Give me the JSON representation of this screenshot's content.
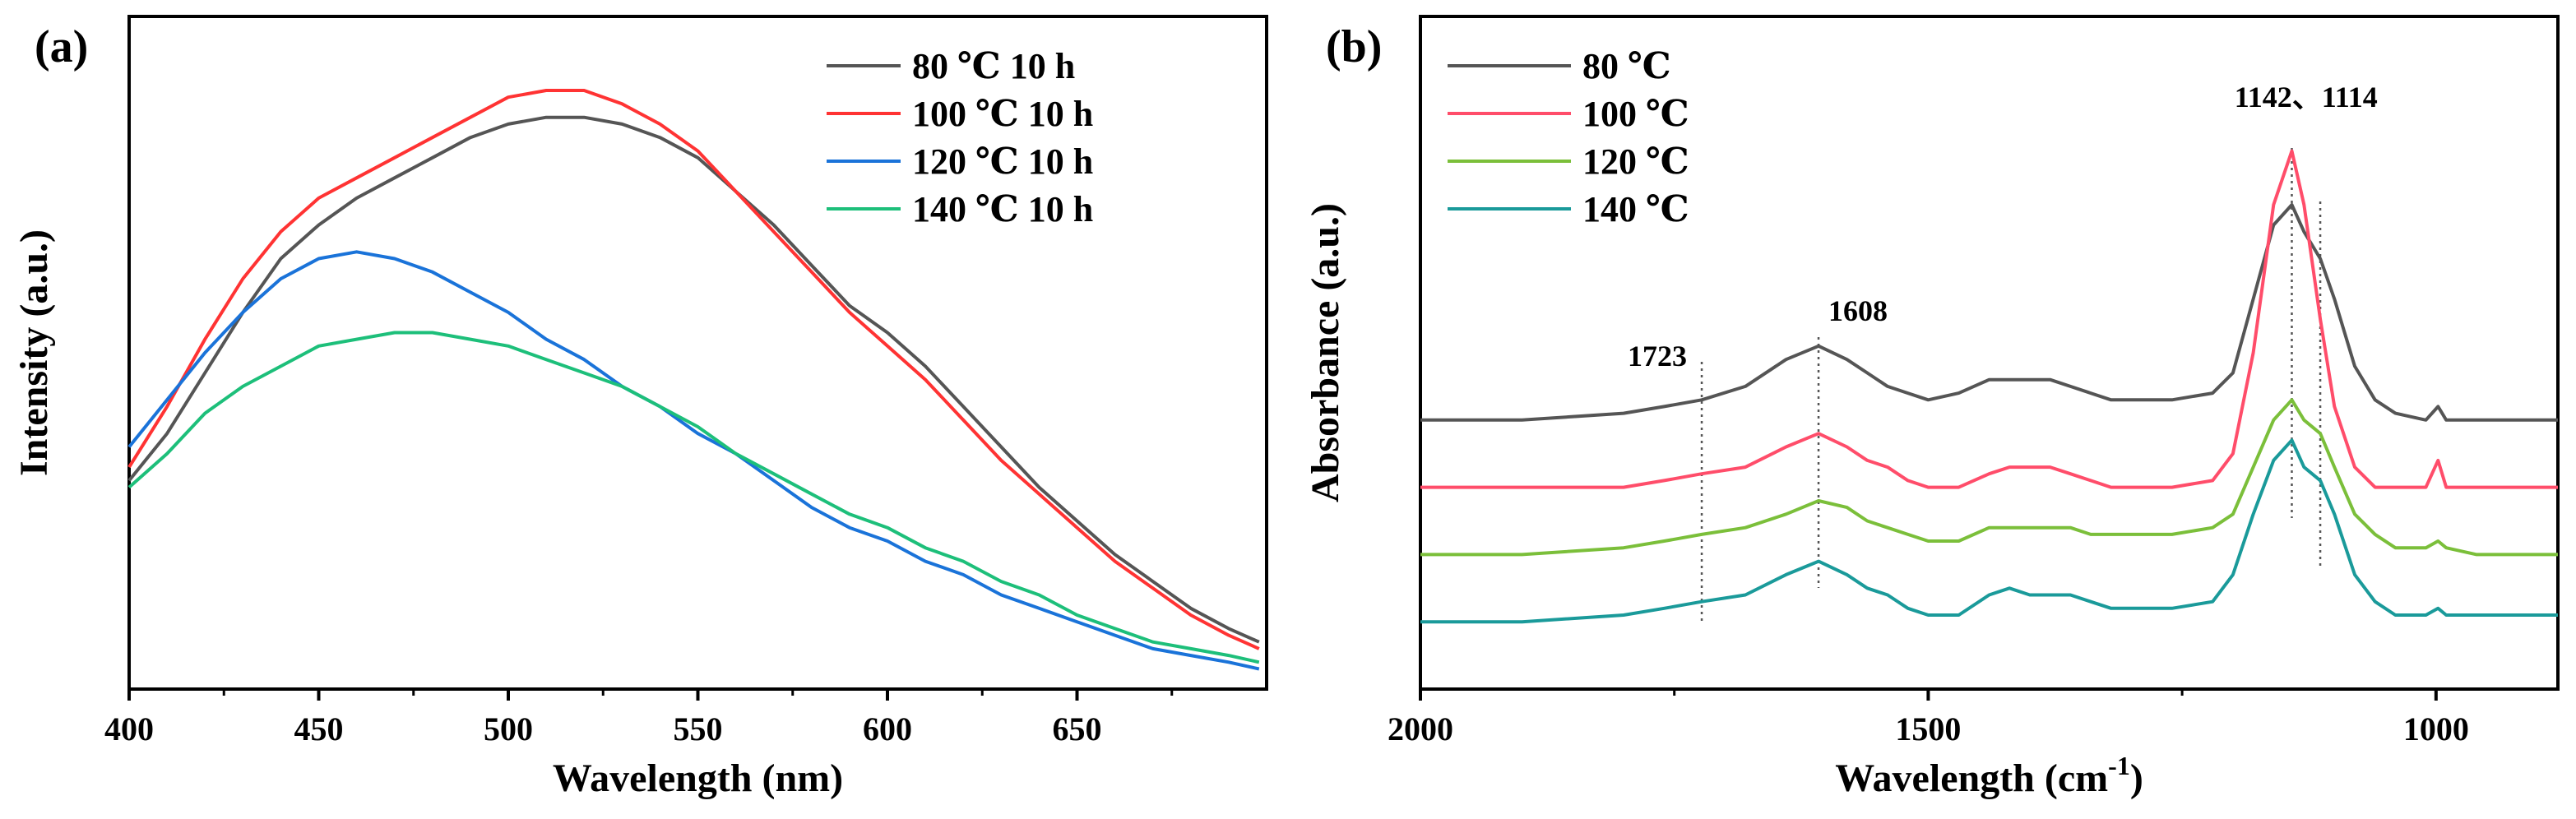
{
  "chart_data": [
    {
      "type": "line",
      "panel_label": "(a)",
      "xlabel": "Wavelength (nm)",
      "ylabel": "Intensity (a.u.)",
      "xlim": [
        400,
        700
      ],
      "ylim": [
        0,
        1
      ],
      "xticks": [
        400,
        450,
        500,
        550,
        600,
        650
      ],
      "show_y_ticks": false,
      "grid": false,
      "legend": "top-right",
      "series": [
        {
          "name": "80 ℃  10 h",
          "color": "#555555",
          "x": [
            400,
            410,
            420,
            430,
            440,
            450,
            460,
            470,
            480,
            490,
            500,
            510,
            520,
            530,
            540,
            550,
            560,
            570,
            580,
            590,
            600,
            610,
            620,
            630,
            640,
            650,
            660,
            670,
            680,
            690,
            698
          ],
          "y": [
            0.31,
            0.38,
            0.47,
            0.56,
            0.64,
            0.69,
            0.73,
            0.76,
            0.79,
            0.82,
            0.84,
            0.85,
            0.85,
            0.84,
            0.82,
            0.79,
            0.74,
            0.69,
            0.63,
            0.57,
            0.53,
            0.48,
            0.42,
            0.36,
            0.3,
            0.25,
            0.2,
            0.16,
            0.12,
            0.09,
            0.07
          ]
        },
        {
          "name": "100 ℃  10 h",
          "color": "#ff3333",
          "x": [
            400,
            410,
            420,
            430,
            440,
            450,
            460,
            470,
            480,
            490,
            500,
            510,
            520,
            530,
            540,
            550,
            560,
            570,
            580,
            590,
            600,
            610,
            620,
            630,
            640,
            650,
            660,
            670,
            680,
            690,
            698
          ],
          "y": [
            0.33,
            0.42,
            0.52,
            0.61,
            0.68,
            0.73,
            0.76,
            0.79,
            0.82,
            0.85,
            0.88,
            0.89,
            0.89,
            0.87,
            0.84,
            0.8,
            0.74,
            0.68,
            0.62,
            0.56,
            0.51,
            0.46,
            0.4,
            0.34,
            0.29,
            0.24,
            0.19,
            0.15,
            0.11,
            0.08,
            0.06
          ]
        },
        {
          "name": "120 ℃  10 h",
          "color": "#1a73d9",
          "x": [
            400,
            410,
            420,
            430,
            440,
            450,
            460,
            470,
            480,
            490,
            500,
            510,
            520,
            530,
            540,
            550,
            560,
            570,
            580,
            590,
            600,
            610,
            620,
            630,
            640,
            650,
            660,
            670,
            680,
            690,
            698
          ],
          "y": [
            0.36,
            0.43,
            0.5,
            0.56,
            0.61,
            0.64,
            0.65,
            0.64,
            0.62,
            0.59,
            0.56,
            0.52,
            0.49,
            0.45,
            0.42,
            0.38,
            0.35,
            0.31,
            0.27,
            0.24,
            0.22,
            0.19,
            0.17,
            0.14,
            0.12,
            0.1,
            0.08,
            0.06,
            0.05,
            0.04,
            0.03
          ]
        },
        {
          "name": "140 ℃  10 h",
          "color": "#1dbf7a",
          "x": [
            400,
            410,
            420,
            430,
            440,
            450,
            460,
            470,
            480,
            490,
            500,
            510,
            520,
            530,
            540,
            550,
            560,
            570,
            580,
            590,
            600,
            610,
            620,
            630,
            640,
            650,
            660,
            670,
            680,
            690,
            698
          ],
          "y": [
            0.3,
            0.35,
            0.41,
            0.45,
            0.48,
            0.51,
            0.52,
            0.53,
            0.53,
            0.52,
            0.51,
            0.49,
            0.47,
            0.45,
            0.42,
            0.39,
            0.35,
            0.32,
            0.29,
            0.26,
            0.24,
            0.21,
            0.19,
            0.16,
            0.14,
            0.11,
            0.09,
            0.07,
            0.06,
            0.05,
            0.04
          ]
        }
      ]
    },
    {
      "type": "line",
      "panel_label": "(b)",
      "xlabel": "Wavelength (cm",
      "xlabel_sup": "-1",
      "xlabel_tail": ")",
      "ylabel": "Absorbance (a.u.)",
      "xlim": [
        2000,
        880
      ],
      "ylim": [
        0,
        1
      ],
      "xticks": [
        2000,
        1500,
        1000
      ],
      "show_y_ticks": false,
      "grid": false,
      "legend": "top-left",
      "annotations": [
        {
          "text": "1723",
          "x": 1723
        },
        {
          "text": "1608",
          "x": 1608
        },
        {
          "text": "1142、1114",
          "x": 1128
        }
      ],
      "series": [
        {
          "name": "80 ℃",
          "color": "#555555",
          "x": [
            2000,
            1900,
            1800,
            1760,
            1723,
            1680,
            1640,
            1608,
            1580,
            1560,
            1540,
            1520,
            1500,
            1470,
            1440,
            1420,
            1400,
            1380,
            1360,
            1340,
            1320,
            1300,
            1260,
            1220,
            1200,
            1180,
            1160,
            1142,
            1130,
            1114,
            1100,
            1080,
            1060,
            1040,
            1010,
            998,
            990,
            960,
            930,
            880
          ],
          "y": [
            0.4,
            0.4,
            0.41,
            0.42,
            0.43,
            0.45,
            0.49,
            0.51,
            0.49,
            0.47,
            0.45,
            0.44,
            0.43,
            0.44,
            0.46,
            0.46,
            0.46,
            0.46,
            0.45,
            0.44,
            0.43,
            0.43,
            0.43,
            0.44,
            0.47,
            0.58,
            0.69,
            0.72,
            0.68,
            0.64,
            0.58,
            0.48,
            0.43,
            0.41,
            0.4,
            0.42,
            0.4,
            0.4,
            0.4,
            0.4
          ]
        },
        {
          "name": "100 ℃",
          "color": "#ff4d6a",
          "x": [
            2000,
            1900,
            1800,
            1760,
            1723,
            1680,
            1640,
            1608,
            1580,
            1560,
            1540,
            1520,
            1500,
            1470,
            1440,
            1420,
            1400,
            1380,
            1360,
            1340,
            1320,
            1300,
            1260,
            1220,
            1200,
            1180,
            1160,
            1142,
            1130,
            1114,
            1100,
            1080,
            1060,
            1040,
            1010,
            998,
            990,
            960,
            930,
            880
          ],
          "y": [
            0.3,
            0.3,
            0.3,
            0.31,
            0.32,
            0.33,
            0.36,
            0.38,
            0.36,
            0.34,
            0.33,
            0.31,
            0.3,
            0.3,
            0.32,
            0.33,
            0.33,
            0.33,
            0.32,
            0.31,
            0.3,
            0.3,
            0.3,
            0.31,
            0.35,
            0.5,
            0.72,
            0.8,
            0.72,
            0.55,
            0.42,
            0.33,
            0.3,
            0.3,
            0.3,
            0.34,
            0.3,
            0.3,
            0.3,
            0.3
          ]
        },
        {
          "name": "120 ℃",
          "color": "#7bbf3a",
          "x": [
            2000,
            1900,
            1800,
            1760,
            1723,
            1680,
            1640,
            1608,
            1580,
            1560,
            1540,
            1520,
            1500,
            1470,
            1440,
            1420,
            1400,
            1380,
            1360,
            1340,
            1320,
            1300,
            1260,
            1220,
            1200,
            1180,
            1160,
            1142,
            1130,
            1114,
            1100,
            1080,
            1060,
            1040,
            1010,
            998,
            990,
            960,
            930,
            880
          ],
          "y": [
            0.2,
            0.2,
            0.21,
            0.22,
            0.23,
            0.24,
            0.26,
            0.28,
            0.27,
            0.25,
            0.24,
            0.23,
            0.22,
            0.22,
            0.24,
            0.24,
            0.24,
            0.24,
            0.24,
            0.23,
            0.23,
            0.23,
            0.23,
            0.24,
            0.26,
            0.33,
            0.4,
            0.43,
            0.4,
            0.38,
            0.33,
            0.26,
            0.23,
            0.21,
            0.21,
            0.22,
            0.21,
            0.2,
            0.2,
            0.2
          ]
        },
        {
          "name": "140 ℃",
          "color": "#1a9a9a",
          "x": [
            2000,
            1900,
            1800,
            1760,
            1723,
            1680,
            1640,
            1608,
            1580,
            1560,
            1540,
            1520,
            1500,
            1470,
            1440,
            1420,
            1400,
            1380,
            1360,
            1340,
            1320,
            1300,
            1260,
            1220,
            1200,
            1180,
            1160,
            1142,
            1130,
            1114,
            1100,
            1080,
            1060,
            1040,
            1010,
            998,
            990,
            960,
            930,
            880
          ],
          "y": [
            0.1,
            0.1,
            0.11,
            0.12,
            0.13,
            0.14,
            0.17,
            0.19,
            0.17,
            0.15,
            0.14,
            0.12,
            0.11,
            0.11,
            0.14,
            0.15,
            0.14,
            0.14,
            0.14,
            0.13,
            0.12,
            0.12,
            0.12,
            0.13,
            0.17,
            0.26,
            0.34,
            0.37,
            0.33,
            0.31,
            0.26,
            0.17,
            0.13,
            0.11,
            0.11,
            0.12,
            0.11,
            0.11,
            0.11,
            0.11
          ]
        }
      ]
    }
  ]
}
